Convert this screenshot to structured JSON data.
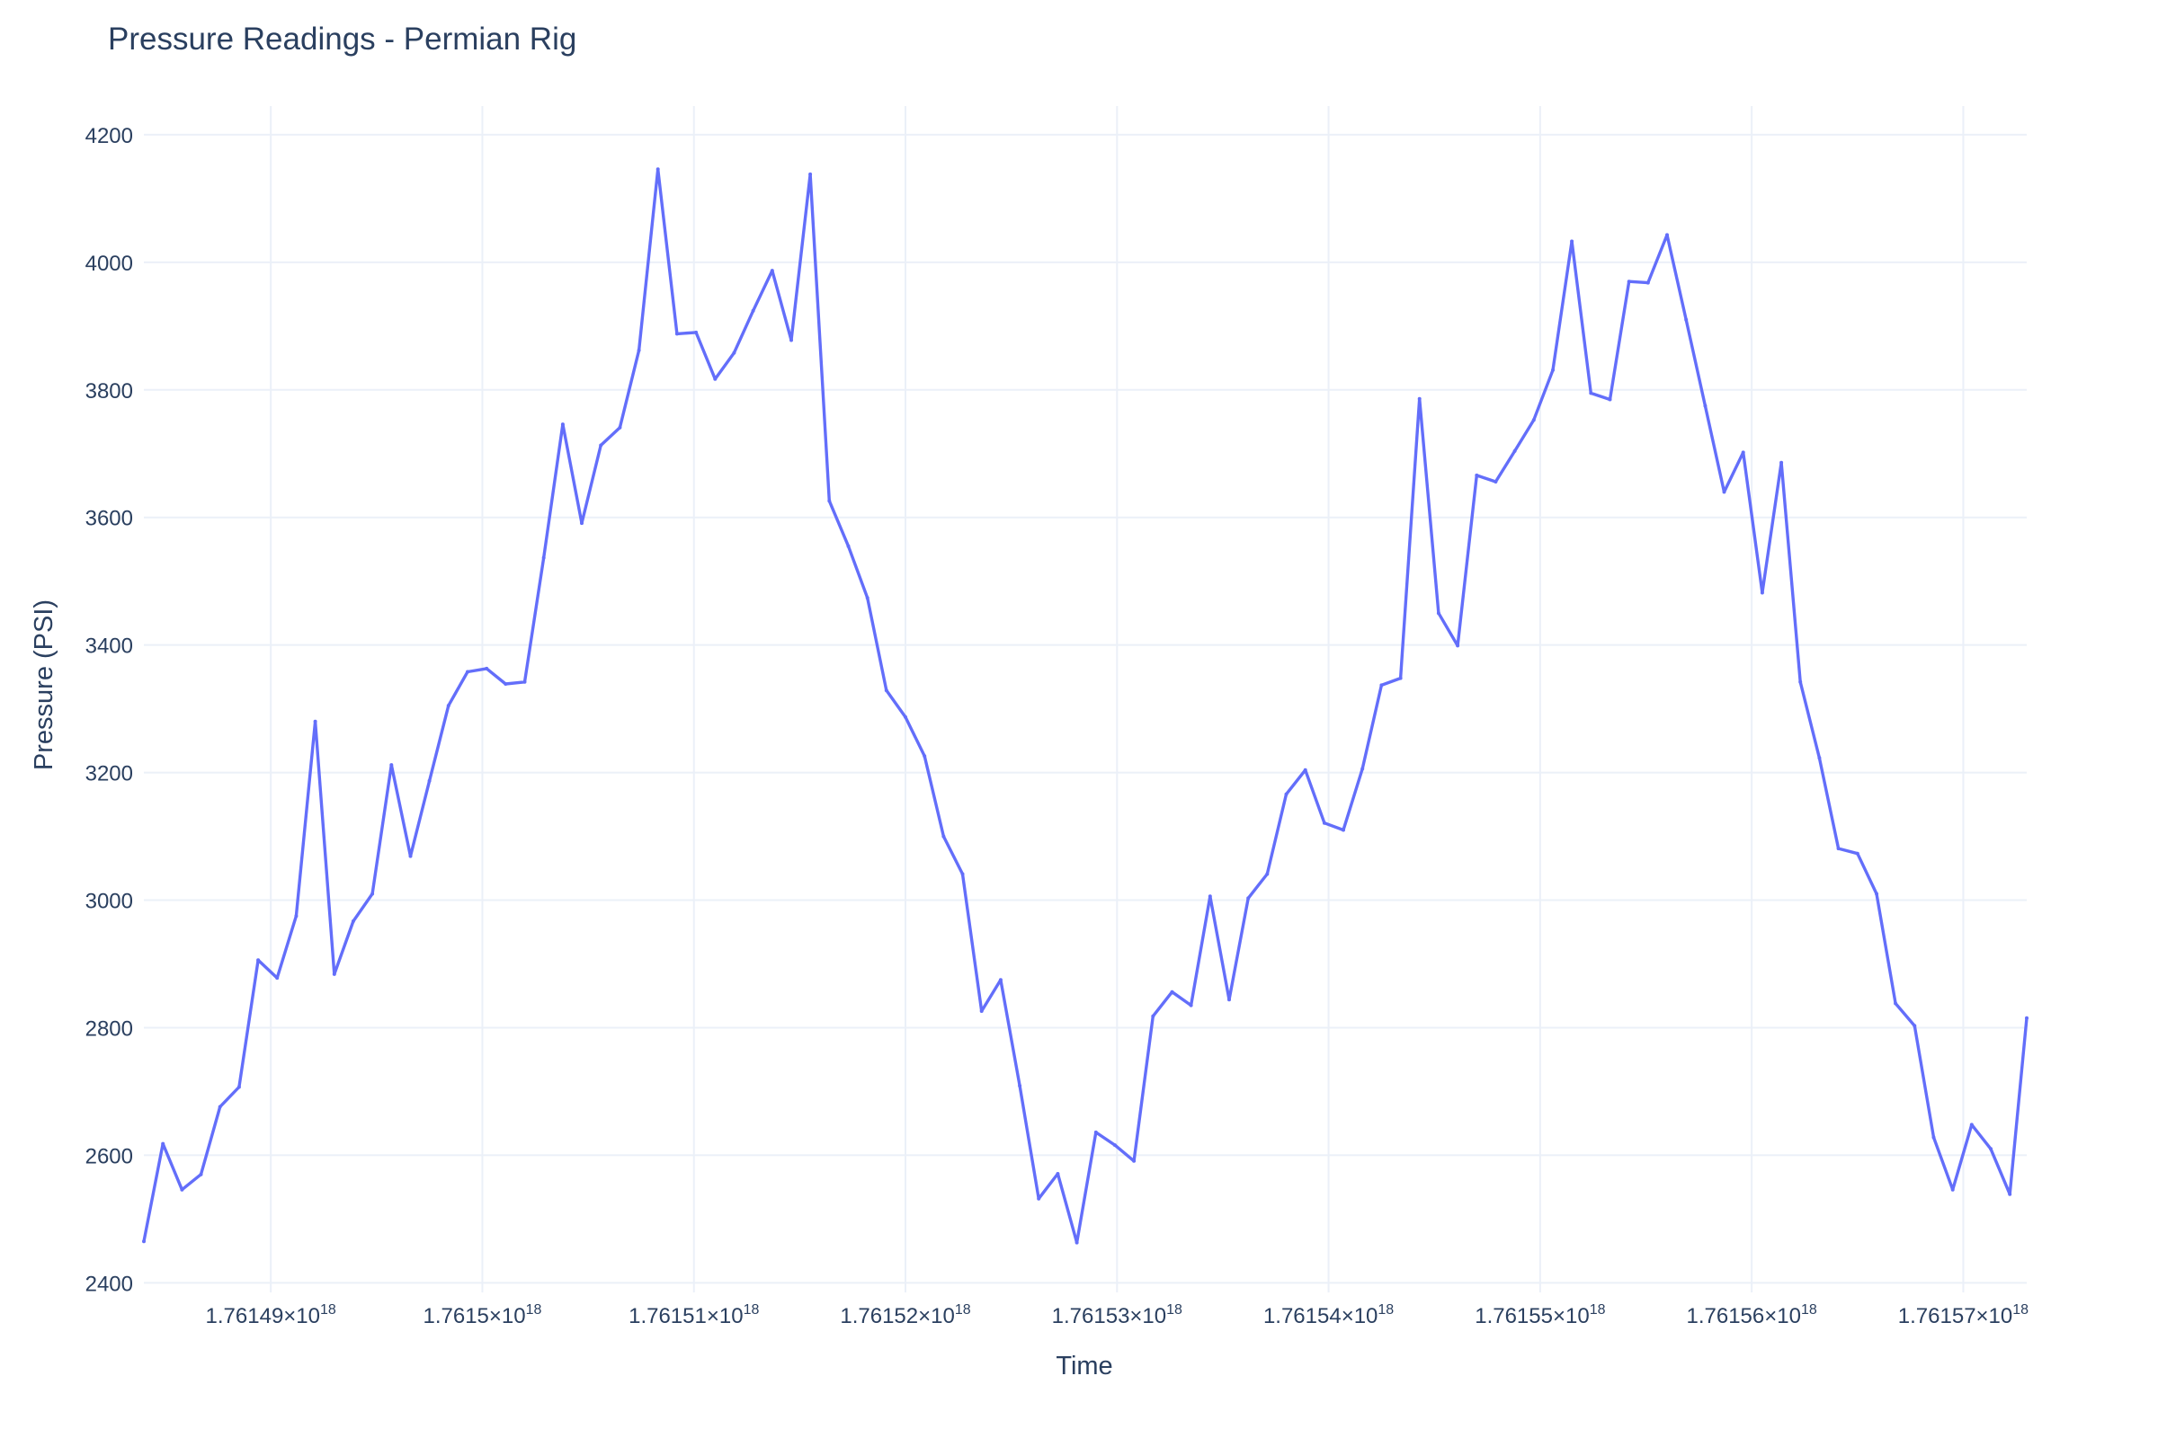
{
  "chart_data": {
    "type": "line",
    "title": "Pressure Readings - Permian Rig",
    "xlabel": "Time",
    "ylabel": "Pressure (PSI)",
    "grid": true,
    "legend": "none",
    "x_unit": "×10^18",
    "xlim": [
      1.761484,
      1.761573
    ],
    "ylim": [
      2385,
      4245
    ],
    "y_ticks": [
      2400,
      2600,
      2800,
      3000,
      3200,
      3400,
      3600,
      3800,
      4000,
      4200
    ],
    "x_ticks": [
      1.76149,
      1.7615,
      1.76151,
      1.76152,
      1.76153,
      1.76154,
      1.76155,
      1.76156,
      1.76157
    ],
    "x_tick_labels": [
      "1.76149×10",
      "1.7615×10",
      "1.76151×10",
      "1.76152×10",
      "1.76153×10",
      "1.76154×10",
      "1.76155×10",
      "1.76156×10",
      "1.76157×10"
    ],
    "x_tick_exponent": "18",
    "colors": {
      "line": "#636efa",
      "grid": "#ebf0f8",
      "text": "#2a3f5f"
    },
    "series": [
      {
        "values": [
          2465,
          2618,
          2546,
          2570,
          2676,
          2707,
          2906,
          2878,
          2975,
          3280,
          2884,
          2967,
          3010,
          3212,
          3069,
          3187,
          3305,
          3358,
          3363,
          3339,
          3342,
          3537,
          3746,
          3591,
          3713,
          3741,
          3862,
          4146,
          3888,
          3890,
          3817,
          3858,
          3924,
          3987,
          3878,
          4138,
          3626,
          3555,
          3474,
          3329,
          3287,
          3226,
          3100,
          3041,
          2826,
          2875,
          2709,
          2532,
          2571,
          2463,
          2636,
          2616,
          2591,
          2818,
          2856,
          2835,
          3006,
          2844,
          3003,
          3041,
          3166,
          3204,
          3121,
          3110,
          3206,
          3337,
          3348,
          3786,
          3450,
          3399,
          3666,
          3656,
          3704,
          3753,
          3831,
          4033,
          3795,
          3785,
          3970,
          3968,
          4043,
          3910,
          3775,
          3640,
          3702,
          3482,
          3686,
          3342,
          3223,
          3081,
          3073,
          3010,
          2838,
          2803,
          2628,
          2546,
          2648,
          2610,
          2539,
          2815
        ],
        "x": [
          1.761484,
          1.7614849,
          1.7614858,
          1.7614867,
          1.7614876,
          1.7614885,
          1.7614894,
          1.7614903,
          1.7614912,
          1.7614921,
          1.761493,
          1.7614939,
          1.7614948,
          1.7614957,
          1.7614966,
          1.7614975,
          1.7614984,
          1.7614993,
          1.7615002,
          1.7615011,
          1.761502,
          1.7615029,
          1.7615038,
          1.7615047,
          1.7615056,
          1.7615065,
          1.7615074,
          1.7615083,
          1.7615092,
          1.7615101,
          1.761511,
          1.7615119,
          1.7615128,
          1.7615137,
          1.7615146,
          1.7615155,
          1.7615164,
          1.7615173,
          1.7615182,
          1.7615191,
          1.76152,
          1.7615209,
          1.7615218,
          1.7615227,
          1.7615236,
          1.7615245,
          1.7615254,
          1.7615263,
          1.7615272,
          1.7615281,
          1.761529,
          1.7615299,
          1.7615308,
          1.7615317,
          1.7615326,
          1.7615335,
          1.7615344,
          1.7615353,
          1.7615362,
          1.7615371,
          1.761538,
          1.7615389,
          1.7615398,
          1.7615407,
          1.7615416,
          1.7615425,
          1.7615434,
          1.7615443,
          1.7615452,
          1.7615461,
          1.761547,
          1.7615479,
          1.7615488,
          1.7615497,
          1.7615506,
          1.7615515,
          1.7615524,
          1.7615533,
          1.7615542,
          1.7615551,
          1.761556,
          1.7615569,
          1.7615578,
          1.7615587,
          1.7615596,
          1.7615605,
          1.7615614,
          1.7615623,
          1.7615632,
          1.7615641,
          1.761565,
          1.7615659,
          1.7615668,
          1.7615677,
          1.7615686,
          1.7615695,
          1.7615704,
          1.7615713,
          1.7615722,
          1.761573
        ]
      }
    ]
  }
}
